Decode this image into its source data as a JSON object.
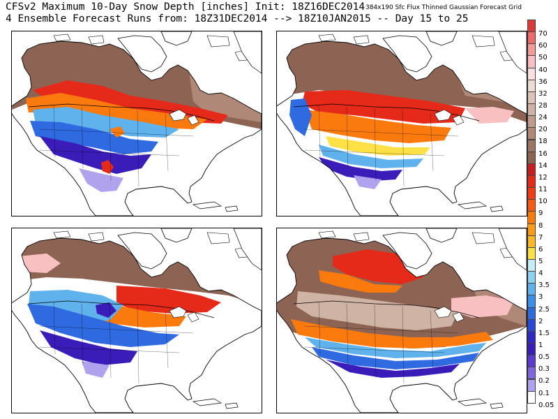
{
  "header": {
    "line1": "CFSv2 Maximum 10-Day Snow Depth [inches] Init: 18Z16DEC2014",
    "line2": "4 Ensemble Forecast Runs from: 18Z31DEC2014 --> 18Z10JAN2015 -- Day 15 to 25",
    "grid_info": "384x190 Sfc Flux Thinned Gaussian Forecast Grid"
  },
  "legend": {
    "entries": [
      {
        "label": "70",
        "color": "#d93a3a"
      },
      {
        "label": "60",
        "color": "#ef6b6b"
      },
      {
        "label": "50",
        "color": "#f59a9a"
      },
      {
        "label": "40",
        "color": "#f8c0c0"
      },
      {
        "label": "36",
        "color": "#fbe0e0"
      },
      {
        "label": "32",
        "color": "#ecdcd4"
      },
      {
        "label": "28",
        "color": "#dcc4b8"
      },
      {
        "label": "24",
        "color": "#cfb3a4"
      },
      {
        "label": "20",
        "color": "#bf9c8b"
      },
      {
        "label": "18",
        "color": "#b08877"
      },
      {
        "label": "16",
        "color": "#9f7664"
      },
      {
        "label": "14",
        "color": "#8d6453"
      },
      {
        "label": "12",
        "color": "#c81e1e"
      },
      {
        "label": "11",
        "color": "#e62a1a"
      },
      {
        "label": "10",
        "color": "#f23c14"
      },
      {
        "label": "9",
        "color": "#f75a10"
      },
      {
        "label": "8",
        "color": "#fb7a0e"
      },
      {
        "label": "7",
        "color": "#fd9a18"
      },
      {
        "label": "6",
        "color": "#fdb82a"
      },
      {
        "label": "5",
        "color": "#fde146"
      },
      {
        "label": "4",
        "color": "#c6ecf8"
      },
      {
        "label": "3.5",
        "color": "#8fd1f2"
      },
      {
        "label": "3",
        "color": "#5fb2ec"
      },
      {
        "label": "2.5",
        "color": "#3c8fe6"
      },
      {
        "label": "2",
        "color": "#2f6ae0"
      },
      {
        "label": "1.5",
        "color": "#2a48d6"
      },
      {
        "label": "1",
        "color": "#2e28c6"
      },
      {
        "label": "0.5",
        "color": "#3a1cb8"
      },
      {
        "label": "0.3",
        "color": "#5a3ad0"
      },
      {
        "label": "0.2",
        "color": "#7f66e0"
      },
      {
        "label": "0.1",
        "color": "#b1a2ee"
      },
      {
        "label": "0.05",
        "color": "#ffffff"
      }
    ]
  },
  "colors": {
    "deep_brown": "#8d6453",
    "mid_brown": "#b08877",
    "light_brown": "#cfb3a4",
    "red": "#e62a1a",
    "orange": "#fb7a0e",
    "yellow": "#fde146",
    "light_blue": "#5fb2ec",
    "blue": "#2f6ae0",
    "purple": "#3a1cb8",
    "light_purple": "#b1a2ee",
    "pink": "#f8c0c0"
  }
}
